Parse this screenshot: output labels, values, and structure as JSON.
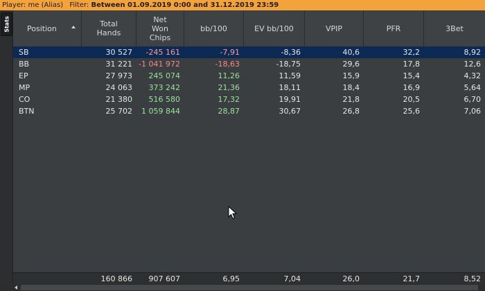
{
  "filter_bar": {
    "player_label": "Player:",
    "player_value": "me (Alias)",
    "filter_label": "Filter:",
    "filter_value": "Between 01.09.2019 0:00 and 31.12.2019 23:59",
    "background": "#f4a23c"
  },
  "side_tab": {
    "label": "Stats"
  },
  "table": {
    "columns": [
      {
        "label": "Position",
        "sorted": "ascending"
      },
      {
        "label": "Total\nHands"
      },
      {
        "label": "Net\nWon\nChips"
      },
      {
        "label": "bb/100"
      },
      {
        "label": "EV bb/100"
      },
      {
        "label": "VPIP"
      },
      {
        "label": "PFR"
      },
      {
        "label": "3Bet"
      }
    ],
    "rows": [
      {
        "position": "SB",
        "hands": "30 527",
        "net_won": "-245 161",
        "bb100": "-7,91",
        "ev_bb100": "-8,36",
        "vpip": "40,6",
        "pfr": "32,2",
        "threebet": "8,92",
        "selected": true
      },
      {
        "position": "BB",
        "hands": "31 221",
        "net_won": "-1 041 972",
        "bb100": "-18,63",
        "ev_bb100": "-18,75",
        "vpip": "29,6",
        "pfr": "17,8",
        "threebet": "12,6"
      },
      {
        "position": "EP",
        "hands": "27 973",
        "net_won": "245 074",
        "bb100": "11,26",
        "ev_bb100": "11,59",
        "vpip": "15,9",
        "pfr": "15,4",
        "threebet": "4,32"
      },
      {
        "position": "MP",
        "hands": "24 063",
        "net_won": "373 242",
        "bb100": "21,36",
        "ev_bb100": "18,11",
        "vpip": "18,4",
        "pfr": "16,9",
        "threebet": "5,64"
      },
      {
        "position": "CO",
        "hands": "21 380",
        "net_won": "516 580",
        "bb100": "17,32",
        "ev_bb100": "19,91",
        "vpip": "21,8",
        "pfr": "20,5",
        "threebet": "6,70"
      },
      {
        "position": "BTN",
        "hands": "25 702",
        "net_won": "1 059 844",
        "bb100": "28,87",
        "ev_bb100": "30,67",
        "vpip": "26,8",
        "pfr": "25,6",
        "threebet": "7,06"
      }
    ],
    "totals": {
      "hands": "160 866",
      "net_won": "907 607",
      "bb100": "6,95",
      "ev_bb100": "7,04",
      "vpip": "26,0",
      "pfr": "21,7",
      "threebet": "8,52"
    },
    "colors": {
      "negative": "#f28c8c",
      "positive": "#9be39b",
      "selected_row": "#0d2a55"
    }
  },
  "icons": {
    "sort": "sort-ascending-icon",
    "scroll_left": "arrow-left-icon",
    "cursor": "mouse-pointer-icon"
  }
}
